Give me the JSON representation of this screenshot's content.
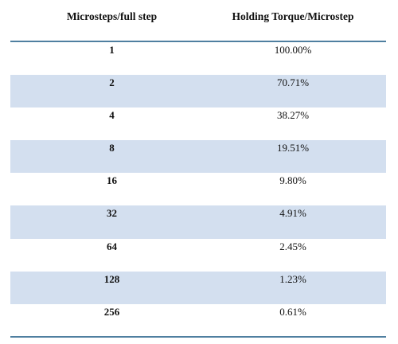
{
  "table": {
    "headers": {
      "microsteps": "Microsteps/full step",
      "torque": "Holding Torque/Microstep"
    },
    "rows": [
      {
        "microsteps": "1",
        "torque": "100.00%"
      },
      {
        "microsteps": "2",
        "torque": "70.71%"
      },
      {
        "microsteps": "4",
        "torque": "38.27%"
      },
      {
        "microsteps": "8",
        "torque": "19.51%"
      },
      {
        "microsteps": "16",
        "torque": "9.80%"
      },
      {
        "microsteps": "32",
        "torque": "4.91%"
      },
      {
        "microsteps": "64",
        "torque": "2.45%"
      },
      {
        "microsteps": "128",
        "torque": "1.23%"
      },
      {
        "microsteps": "256",
        "torque": "0.61%"
      }
    ]
  },
  "colors": {
    "rule": "#4f7fa0",
    "band": "#d3dfef",
    "text": "#111111"
  }
}
